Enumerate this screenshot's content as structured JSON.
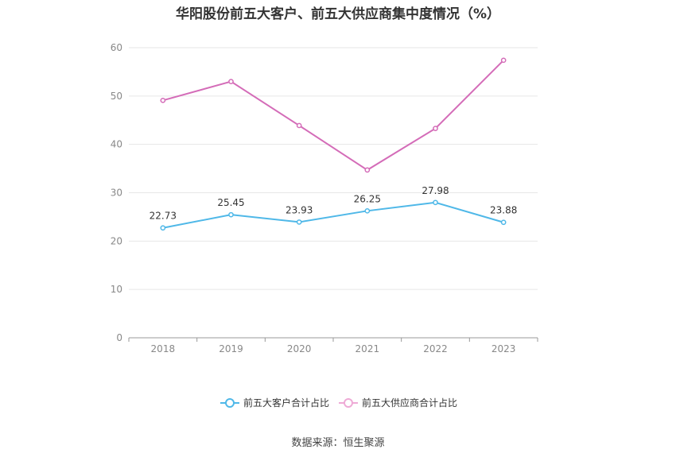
{
  "chart_data": {
    "type": "line",
    "title": "华阳股份前五大客户、前五大供应商集中度情况（%）",
    "categories": [
      "2018",
      "2019",
      "2020",
      "2021",
      "2022",
      "2023"
    ],
    "ylim": [
      0,
      60
    ],
    "yticks": [
      "0",
      "10",
      "20",
      "30",
      "40",
      "50",
      "60"
    ],
    "grid": true,
    "legend_position": "bottom-center",
    "series": [
      {
        "name": "前五大客户合计占比",
        "color": "#4fb8e8",
        "values": [
          22.73,
          25.45,
          23.93,
          26.25,
          27.98,
          23.88
        ],
        "labels": [
          "22.73",
          "25.45",
          "23.93",
          "26.25",
          "27.98",
          "23.88"
        ],
        "show_labels": true
      },
      {
        "name": "前五大供应商合计占比",
        "color": "#d46cb8",
        "legend_color": "#eeaad6",
        "values": [
          49.1,
          53.0,
          43.9,
          34.7,
          43.3,
          57.4
        ],
        "show_labels": false
      }
    ],
    "source": "数据来源：恒生聚源"
  }
}
